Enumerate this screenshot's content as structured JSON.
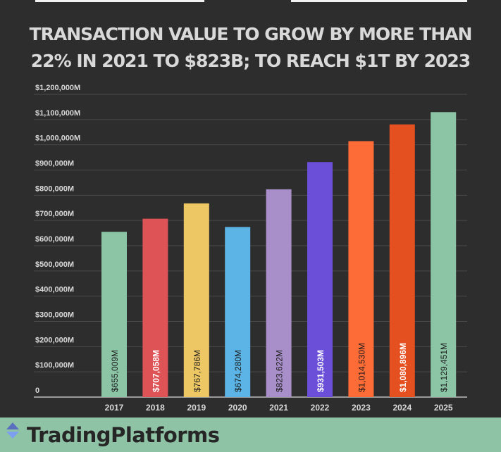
{
  "chart_data": {
    "type": "bar",
    "title": "TRANSACTION VALUE TO GROW BY MORE THAN 22% IN 2021 TO $823B; TO REACH $1T BY 2023",
    "title_lines": [
      "TRANSACTION VALUE TO GROW BY MORE THAN",
      "22% IN 2021 TO $823B; TO REACH $1T BY 2023"
    ],
    "categories": [
      "2017",
      "2018",
      "2019",
      "2020",
      "2021",
      "2022",
      "2023",
      "2024",
      "2025"
    ],
    "values": [
      655009,
      707058,
      767786,
      674280,
      823622,
      931503,
      1014530,
      1080896,
      1129451
    ],
    "data_labels": [
      "$655,009M",
      "$707,058M",
      "$767,786M",
      "$674,280M",
      "$823,622M",
      "$931,503M",
      "$1,014,530M",
      "$1,080,896M",
      "$1,129,451M"
    ],
    "colors": [
      "#8cc5a6",
      "#de5456",
      "#eec765",
      "#5bb4e5",
      "#a98fc9",
      "#6c4fd9",
      "#fd6c37",
      "#e4501f",
      "#8cc5a6"
    ],
    "label_colors": [
      "#1a1a1a",
      "#ffffff",
      "#1a1a1a",
      "#1a1a1a",
      "#1a1a1a",
      "#ffffff",
      "#1a1a1a",
      "#ffffff",
      "#1a1a1a"
    ],
    "ylim": [
      0,
      1200000
    ],
    "yticks": [
      0,
      100000,
      200000,
      300000,
      400000,
      500000,
      600000,
      700000,
      800000,
      900000,
      1000000,
      1100000,
      1200000
    ],
    "ytick_labels": [
      "0",
      "$100,000M",
      "$200,000M",
      "$300,000M",
      "$400,000M",
      "$500,000M",
      "$600,000M",
      "$700,000M",
      "$800,000M",
      "$900,000M",
      "$1,000,000M",
      "$1,100,000M",
      "$1,200,000M"
    ],
    "grid": true,
    "xlabel": "",
    "ylabel": ""
  },
  "footer": {
    "brand": "TradingPlatforms",
    "bg": "#8fc3a6"
  }
}
